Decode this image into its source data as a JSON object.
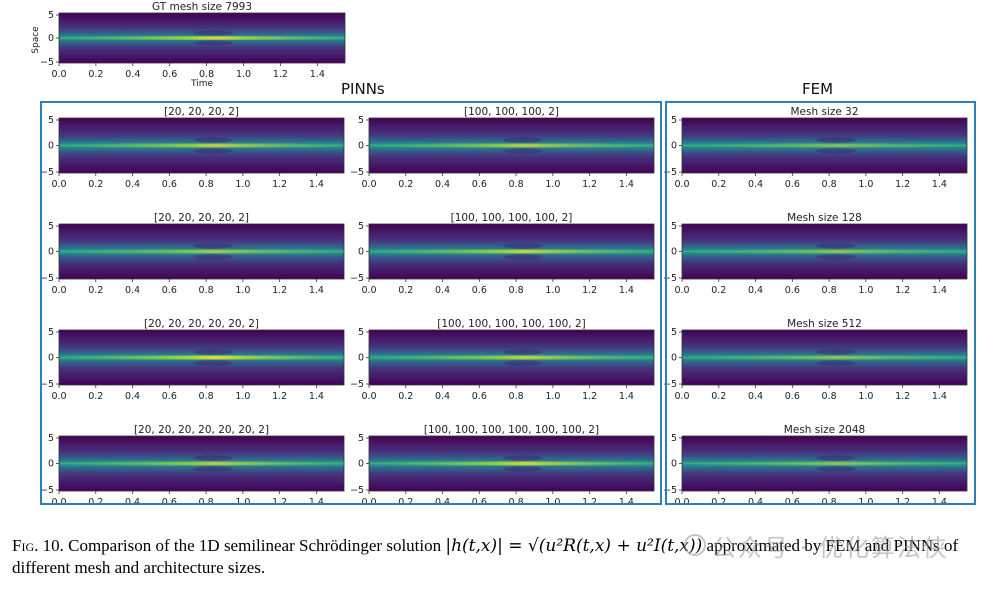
{
  "gt_panel": {
    "title": "GT mesh size 7993",
    "ylabel": "Space",
    "xlabel": "Time"
  },
  "groups": {
    "pinns_title": "PINNs",
    "fem_title": "FEM"
  },
  "axes": {
    "x_ticks": [
      "0.0",
      "0.2",
      "0.4",
      "0.6",
      "0.8",
      "1.0",
      "1.2",
      "1.4"
    ],
    "y_ticks": [
      "5",
      "0",
      "−5"
    ]
  },
  "panels": [
    {
      "title": "[20, 20, 20, 2]",
      "bright": 0.75
    },
    {
      "title": "[100, 100, 100, 2]",
      "bright": 0.7
    },
    {
      "title": "Mesh size 32",
      "bright": 0.45
    },
    {
      "title": "[20, 20, 20, 20, 2]",
      "bright": 0.6
    },
    {
      "title": "[100, 100, 100, 100, 2]",
      "bright": 0.8
    },
    {
      "title": "Mesh size 128",
      "bright": 0.5
    },
    {
      "title": "[20, 20, 20, 20, 20, 2]",
      "bright": 0.95
    },
    {
      "title": "[100, 100, 100, 100, 100, 2]",
      "bright": 0.75
    },
    {
      "title": "Mesh size 512",
      "bright": 0.5
    },
    {
      "title": "[20, 20, 20, 20, 20, 20, 2]",
      "bright": 0.7
    },
    {
      "title": "[100, 100, 100, 100, 100, 100, 2]",
      "bright": 0.85
    },
    {
      "title": "Mesh size 2048",
      "bright": 0.5
    }
  ],
  "caption": {
    "label": "Fig. 10.",
    "text_before": "Comparison of the 1D semilinear Schrödinger solution",
    "formula": "|h(t,x)| = √(u²R(t,x) + u²I(t,x))",
    "text_after": "approximated by FEM and PINNs of different mesh and architecture sizes."
  },
  "watermark": "公众号 · 优化算法侠",
  "colors": {
    "frame": "#2c7fb8",
    "dark": "#440154",
    "mid": "#31688e",
    "teal": "#21918c",
    "green": "#35b779",
    "yellow": "#fde725"
  }
}
